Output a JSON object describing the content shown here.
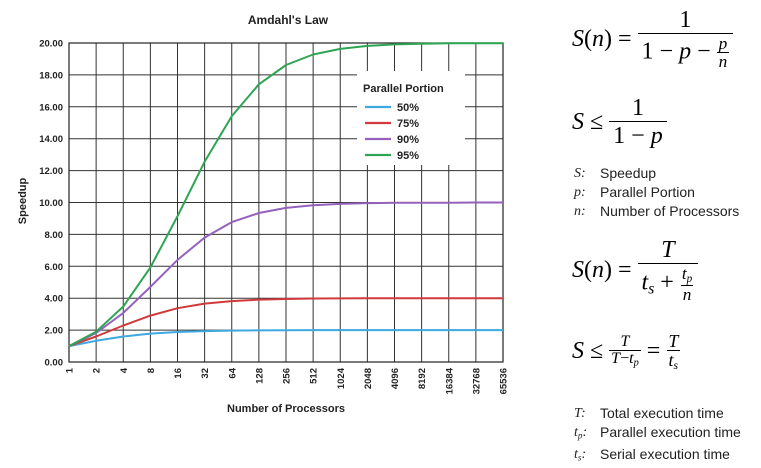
{
  "chart_data": {
    "type": "line",
    "title": "Amdahl's Law",
    "xlabel": "Number of Processors",
    "ylabel": "Speedup",
    "x_scale": "log2",
    "x": [
      1,
      2,
      4,
      8,
      16,
      32,
      64,
      128,
      256,
      512,
      1024,
      2048,
      4096,
      8192,
      16384,
      32768,
      65536
    ],
    "x_tick_labels": [
      "1",
      "2",
      "4",
      "8",
      "16",
      "32",
      "64",
      "128",
      "256",
      "512",
      "1024",
      "2048",
      "4096",
      "8192",
      "16384",
      "32768",
      "65536"
    ],
    "ylim": [
      0,
      20
    ],
    "y_tick_labels": [
      "0.00",
      "2.00",
      "4.00",
      "6.00",
      "8.00",
      "10.00",
      "12.00",
      "14.00",
      "16.00",
      "18.00",
      "20.00"
    ],
    "grid": true,
    "legend_title": "Parallel Portion",
    "legend_placement": "upper-right inside plot",
    "series": [
      {
        "name": "50%",
        "color": "#3ea8e0",
        "values": [
          1.0,
          1.33,
          1.6,
          1.78,
          1.88,
          1.94,
          1.97,
          1.98,
          1.99,
          2.0,
          2.0,
          2.0,
          2.0,
          2.0,
          2.0,
          2.0,
          2.0
        ]
      },
      {
        "name": "75%",
        "color": "#d13a3a",
        "values": [
          1.0,
          1.6,
          2.29,
          2.91,
          3.37,
          3.66,
          3.82,
          3.91,
          3.95,
          3.98,
          3.99,
          4.0,
          4.0,
          4.0,
          4.0,
          4.0,
          4.0
        ]
      },
      {
        "name": "90%",
        "color": "#9561bd",
        "values": [
          1.0,
          1.82,
          3.08,
          4.71,
          6.4,
          7.8,
          8.77,
          9.34,
          9.66,
          9.83,
          9.91,
          9.96,
          9.98,
          9.99,
          9.99,
          10.0,
          10.0
        ]
      },
      {
        "name": "95%",
        "color": "#2da553",
        "values": [
          1.0,
          1.9,
          3.48,
          5.93,
          9.14,
          12.55,
          15.42,
          17.41,
          18.62,
          19.28,
          19.63,
          19.82,
          19.91,
          19.95,
          19.98,
          19.99,
          19.99
        ]
      }
    ]
  },
  "formulas": {
    "definitions_1": [
      {
        "symbol": "S",
        "label": "Speedup"
      },
      {
        "symbol": "p",
        "label": "Parallel Portion"
      },
      {
        "symbol": "n",
        "label": "Number of Processors"
      }
    ],
    "definitions_2": [
      {
        "symbol": "T",
        "sub": "",
        "label": "Total execution time"
      },
      {
        "symbol": "t",
        "sub": "p",
        "label": "Parallel execution time"
      },
      {
        "symbol": "t",
        "sub": "s",
        "label": "Serial execution time"
      }
    ]
  }
}
